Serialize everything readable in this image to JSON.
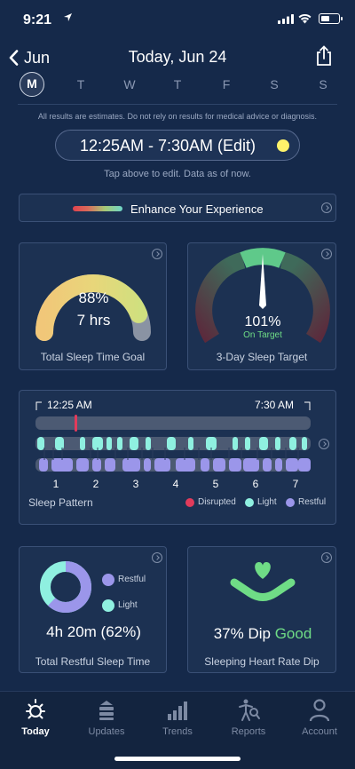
{
  "status_bar": {
    "time": "9:21"
  },
  "nav": {
    "back_label": "Jun",
    "title": "Today, Jun 24"
  },
  "week": {
    "days": [
      {
        "label": "M",
        "active": true
      },
      {
        "label": "T",
        "active": false
      },
      {
        "label": "W",
        "active": false
      },
      {
        "label": "T",
        "active": false
      },
      {
        "label": "F",
        "active": false
      },
      {
        "label": "S",
        "active": false
      },
      {
        "label": "S",
        "active": false
      }
    ]
  },
  "disclaimer": "All results are estimates. Do not rely on results for medical advice or diagnosis.",
  "time_range": {
    "label": "12:25AM - 7:30AM (Edit)"
  },
  "edit_hint": "Tap above to edit. Data as of now.",
  "enhance": {
    "label": "Enhance Your Experience"
  },
  "sleep_goal": {
    "percent": "88%",
    "hours": "7 hrs",
    "label": "Total Sleep Time Goal",
    "fraction": 0.88
  },
  "sleep_target": {
    "percent": "101%",
    "status": "On Target",
    "label": "3-Day Sleep Target"
  },
  "sleep_pattern": {
    "start_time": "12:25 AM",
    "end_time": "7:30 AM",
    "title": "Sleep Pattern",
    "hours": [
      "1",
      "2",
      "3",
      "4",
      "5",
      "6",
      "7"
    ],
    "legend": [
      {
        "label": "Disrupted",
        "color": "#e23b5b"
      },
      {
        "label": "Light",
        "color": "#8ff0e0"
      },
      {
        "label": "Restful",
        "color": "#9b96ea"
      }
    ]
  },
  "restful": {
    "legend_restful": "Restful",
    "legend_light": "Light",
    "value": "4h 20m (62%)",
    "label": "Total Restful Sleep Time",
    "restful_fraction": 0.62,
    "colors": {
      "restful": "#9b96ea",
      "light": "#8ff0e0"
    }
  },
  "heart_rate": {
    "dip": "37% Dip",
    "rating": "Good",
    "label": "Sleeping Heart Rate Dip",
    "accent": "#6fdc86"
  },
  "tabs": [
    {
      "label": "Today",
      "icon": "sun-icon",
      "active": true
    },
    {
      "label": "Updates",
      "icon": "updates-icon",
      "active": false
    },
    {
      "label": "Trends",
      "icon": "trends-icon",
      "active": false
    },
    {
      "label": "Reports",
      "icon": "reports-icon",
      "active": false
    },
    {
      "label": "Account",
      "icon": "account-icon",
      "active": false
    }
  ]
}
